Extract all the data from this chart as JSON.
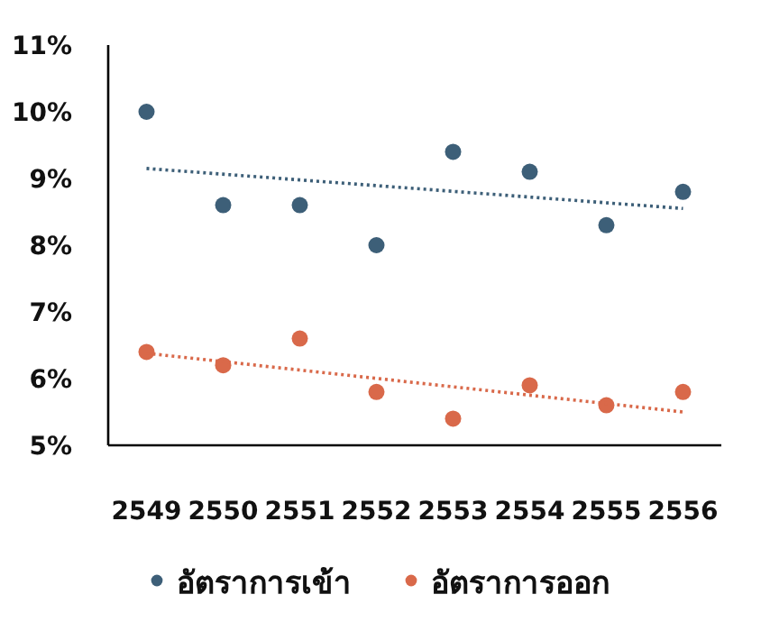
{
  "chart_data": {
    "type": "scatter",
    "xlim": [
      2548.5,
      2556.5
    ],
    "ylim": [
      5,
      11
    ],
    "xticks": [
      2549,
      2550,
      2551,
      2552,
      2553,
      2554,
      2555,
      2556
    ],
    "yticks": [
      {
        "value": 5,
        "label": "5%"
      },
      {
        "value": 6,
        "label": "6%"
      },
      {
        "value": 7,
        "label": "7%"
      },
      {
        "value": 8,
        "label": "8%"
      },
      {
        "value": 9,
        "label": "9%"
      },
      {
        "value": 10,
        "label": "10%"
      },
      {
        "value": 11,
        "label": "11%"
      }
    ],
    "grid": false,
    "legend": "bottom",
    "marker": "circle",
    "series": [
      {
        "name": "อัตราการเข้า",
        "color": "#3d5f78",
        "x": [
          2549,
          2550,
          2551,
          2552,
          2553,
          2554,
          2555,
          2556
        ],
        "values": [
          10.0,
          8.6,
          8.6,
          8.0,
          9.4,
          9.1,
          8.3,
          8.8
        ]
      },
      {
        "name": "อัตราการออก",
        "color": "#d9694a",
        "x": [
          2549,
          2550,
          2551,
          2552,
          2553,
          2554,
          2555,
          2556
        ],
        "values": [
          6.4,
          6.2,
          6.6,
          5.8,
          5.4,
          5.9,
          5.6,
          5.8
        ]
      },
      {
        "type": "line",
        "color": "#3d5f78",
        "line_style": "dotted",
        "marker": "none",
        "x": [
          2549,
          2556
        ],
        "values": [
          9.15,
          8.55
        ]
      },
      {
        "type": "line",
        "color": "#d9694a",
        "line_style": "dotted",
        "marker": "none",
        "x": [
          2549,
          2556
        ],
        "values": [
          6.38,
          5.5
        ]
      }
    ]
  }
}
